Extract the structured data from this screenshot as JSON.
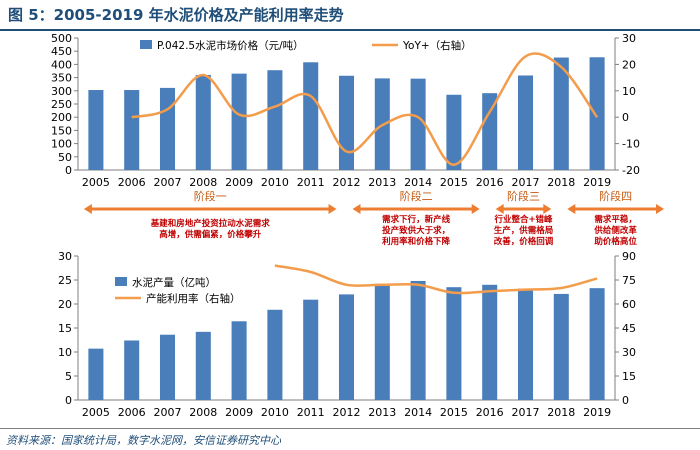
{
  "figure": {
    "title": "图 5：2005-2019 年水泥价格及产能利用率走势",
    "source": "资料来源：国家统计局，数字水泥网，安信证券研究中心"
  },
  "colors": {
    "bar": "#4a7ebb",
    "line": "#f39c4b",
    "phase": "#ed7d31",
    "note": "#c00000",
    "title": "#1f4e79"
  },
  "phases": [
    {
      "label": "阶段一",
      "note": [
        "基建和房地产投资拉动水泥需求",
        "高增，供需偏紧，价格攀升"
      ]
    },
    {
      "label": "阶段二",
      "note": [
        "需求下行，新产线",
        "投产致供大于求，",
        "利用率和价格下降"
      ]
    },
    {
      "label": "阶段三",
      "note": [
        "行业整合+错峰",
        "生产，供需格局",
        "改善，价格回调"
      ]
    },
    {
      "label": "阶段四",
      "note": [
        "需求平稳，",
        "供给侧改革",
        "助价格高位"
      ]
    }
  ],
  "chart_data": [
    {
      "type": "bar+line",
      "title": "",
      "categories": [
        "2005",
        "2006",
        "2007",
        "2008",
        "2009",
        "2010",
        "2011",
        "2012",
        "2013",
        "2014",
        "2015",
        "2016",
        "2017",
        "2018",
        "2019"
      ],
      "series": [
        {
          "name": "P.042.5水泥市场价格（元/吨）",
          "type": "bar",
          "axis": "left",
          "values": [
            303,
            303,
            311,
            360,
            365,
            378,
            408,
            357,
            347,
            346,
            285,
            291,
            358,
            426,
            427
          ]
        },
        {
          "name": "YoY+（右轴）",
          "type": "line",
          "axis": "right",
          "values": [
            null,
            0,
            3,
            16,
            1,
            4,
            8,
            -13,
            -3,
            0,
            -18,
            2,
            23,
            19,
            0
          ]
        }
      ],
      "ylim_left": [
        0,
        500
      ],
      "yticks_left": [
        0,
        50,
        100,
        150,
        200,
        250,
        300,
        350,
        400,
        450,
        500
      ],
      "ylim_right": [
        -20,
        30
      ],
      "yticks_right": [
        -20,
        -10,
        0,
        10,
        20,
        30
      ],
      "legend": "top"
    },
    {
      "type": "bar+line",
      "title": "",
      "categories": [
        "2005",
        "2006",
        "2007",
        "2008",
        "2009",
        "2010",
        "2011",
        "2012",
        "2013",
        "2014",
        "2015",
        "2016",
        "2017",
        "2018",
        "2019"
      ],
      "series": [
        {
          "name": "水泥产量（亿吨）",
          "type": "bar",
          "axis": "left",
          "values": [
            10.7,
            12.4,
            13.6,
            14.2,
            16.4,
            18.8,
            20.9,
            22.0,
            24.2,
            24.8,
            23.5,
            24.0,
            23.2,
            22.1,
            23.3
          ]
        },
        {
          "name": "产能利用率（右轴）",
          "type": "line",
          "axis": "right",
          "values": [
            null,
            null,
            null,
            null,
            null,
            84,
            80,
            72,
            72,
            72,
            67,
            68,
            69,
            70,
            76
          ]
        }
      ],
      "ylim_left": [
        0,
        30
      ],
      "yticks_left": [
        0,
        5,
        10,
        15,
        20,
        25,
        30
      ],
      "ylim_right": [
        0,
        90
      ],
      "yticks_right": [
        0,
        15,
        30,
        45,
        60,
        75,
        90
      ],
      "legend": "top-left"
    }
  ]
}
